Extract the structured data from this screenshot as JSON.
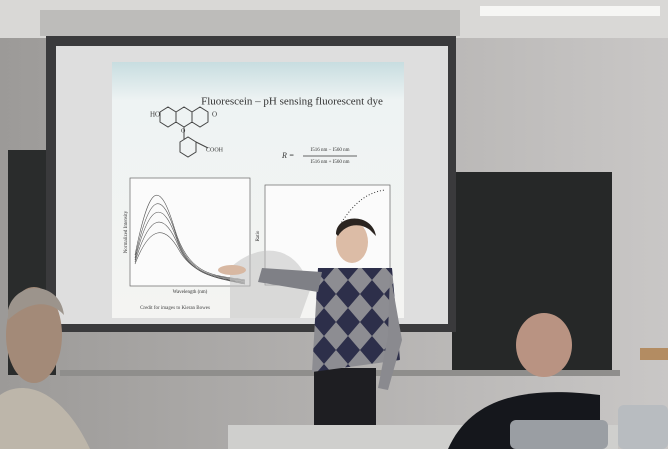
{
  "slide": {
    "title": "Fluorescein – pH sensing fluorescent dye",
    "structure_labels": [
      "HO",
      "O",
      "O",
      "COOH"
    ],
    "formula": {
      "lhs": "R =",
      "numerator": "I516 nm − I560 nm",
      "denominator": "I516 nm + I560 nm"
    },
    "left_plot": {
      "x_label": "Wavelength (nm)",
      "y_label": "Normalized Intensity"
    },
    "right_plot": {
      "y_label": "Ratio"
    },
    "credit": "Credit for images to Kieran Bowes"
  }
}
